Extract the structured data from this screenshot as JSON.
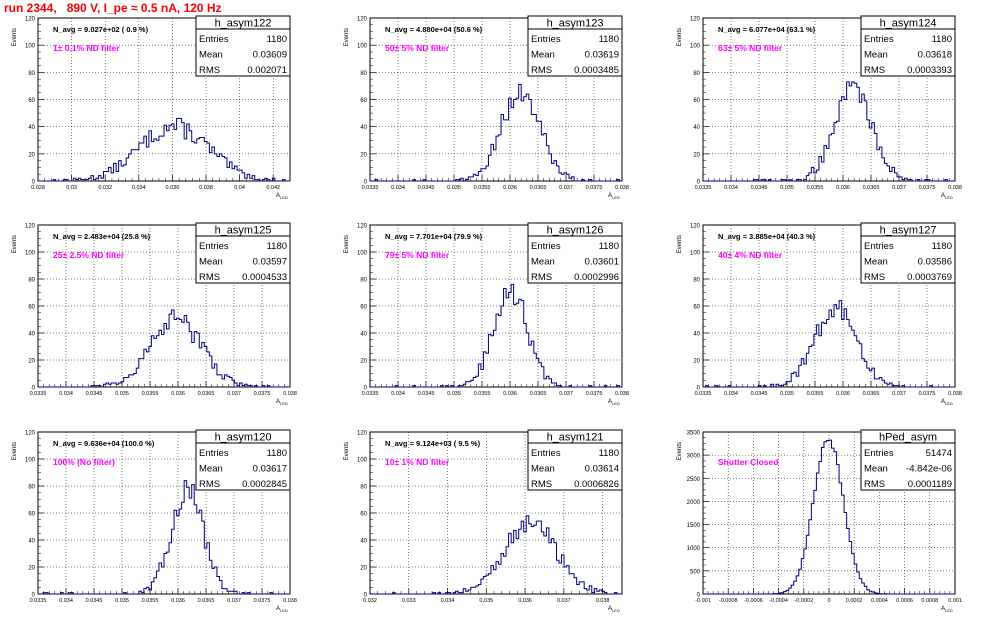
{
  "run_title": "run 2344,   890 V, I_pe ≈ 0.5 nA, 120 Hz",
  "colors": {
    "title": "#ff0000",
    "histogram": "#000080",
    "annotation": "#ff00ff",
    "grid": "#000000"
  },
  "chart_data": [
    {
      "type": "bar",
      "name": "h_asym122",
      "ylabel": "Events",
      "xlabel": "A_LED",
      "grid": true,
      "stats": {
        "entries_label": "Entries",
        "entries": "1180",
        "mean_label": "Mean",
        "mean": "0.03609",
        "rms_label": "RMS",
        "rms": "0.002071"
      },
      "n_avg": "N_avg = 9.027e+02 ( 0.9 %)",
      "annotation": "1± 0.1% ND filter",
      "xlim": [
        0.028,
        0.043
      ],
      "xticks": [
        "0.028",
        "0.03",
        "0.032",
        "0.034",
        "0.036",
        "0.038",
        "0.04",
        "0.042"
      ],
      "xtick_values": [
        0.028,
        0.03,
        0.032,
        0.034,
        0.036,
        0.038,
        0.04,
        0.042
      ],
      "ylim": [
        0,
        120
      ],
      "yticks": [
        "0",
        "20",
        "40",
        "60",
        "80",
        "100",
        "120"
      ],
      "dist": {
        "mean": 0.03609,
        "sigma": 0.002071,
        "peak": 40
      }
    },
    {
      "type": "bar",
      "name": "h_asym123",
      "ylabel": "Events",
      "xlabel": "A_LED",
      "grid": true,
      "stats": {
        "entries_label": "Entries",
        "entries": "1180",
        "mean_label": "Mean",
        "mean": "0.03619",
        "rms_label": "RMS",
        "rms": "0.0003485"
      },
      "n_avg": "N_avg = 4.880e+04 (50.6 %)",
      "annotation": "50± 5% ND filter",
      "xlim": [
        0.0335,
        0.038
      ],
      "xticks": [
        "0.0335",
        "0.034",
        "0.0345",
        "0.035",
        "0.0355",
        "0.036",
        "0.0365",
        "0.037",
        "0.0375",
        "0.038"
      ],
      "xtick_values": [
        0.0335,
        0.034,
        0.0345,
        0.035,
        0.0355,
        0.036,
        0.0365,
        0.037,
        0.0375,
        0.038
      ],
      "ylim": [
        0,
        120
      ],
      "yticks": [
        "0",
        "20",
        "40",
        "60",
        "80",
        "100",
        "120"
      ],
      "dist": {
        "mean": 0.03619,
        "sigma": 0.0003485,
        "peak": 65
      }
    },
    {
      "type": "bar",
      "name": "h_asym124",
      "ylabel": "Events",
      "xlabel": "A_LED",
      "grid": true,
      "stats": {
        "entries_label": "Entries",
        "entries": "1180",
        "mean_label": "Mean",
        "mean": "0.03618",
        "rms_label": "RMS",
        "rms": "0.0003393"
      },
      "n_avg": "N_avg = 6.077e+04 (63.1 %)",
      "annotation": "63± 5% ND filter",
      "xlim": [
        0.0335,
        0.038
      ],
      "xticks": [
        "0.0335",
        "0.034",
        "0.0345",
        "0.035",
        "0.0355",
        "0.036",
        "0.0365",
        "0.037",
        "0.0375",
        "0.038"
      ],
      "xtick_values": [
        0.0335,
        0.034,
        0.0345,
        0.035,
        0.0355,
        0.036,
        0.0365,
        0.037,
        0.0375,
        0.038
      ],
      "ylim": [
        0,
        120
      ],
      "yticks": [
        "0",
        "20",
        "40",
        "60",
        "80",
        "100",
        "120"
      ],
      "dist": {
        "mean": 0.03618,
        "sigma": 0.0003393,
        "peak": 68
      }
    },
    {
      "type": "bar",
      "name": "h_asym125",
      "ylabel": "Events",
      "xlabel": "A_LED",
      "grid": true,
      "stats": {
        "entries_label": "Entries",
        "entries": "1180",
        "mean_label": "Mean",
        "mean": "0.03597",
        "rms_label": "RMS",
        "rms": "0.0004533"
      },
      "n_avg": "N_avg = 2.483e+04 (25.8 %)",
      "annotation": "25± 2.5% ND filter",
      "xlim": [
        0.0335,
        0.038
      ],
      "xticks": [
        "0.0335",
        "0.034",
        "0.0345",
        "0.035",
        "0.0355",
        "0.036",
        "0.0365",
        "0.037",
        "0.0375",
        "0.038"
      ],
      "xtick_values": [
        0.0335,
        0.034,
        0.0345,
        0.035,
        0.0355,
        0.036,
        0.0365,
        0.037,
        0.0375,
        0.038
      ],
      "ylim": [
        0,
        120
      ],
      "yticks": [
        "0",
        "20",
        "40",
        "60",
        "80",
        "100",
        "120"
      ],
      "dist": {
        "mean": 0.03597,
        "sigma": 0.0004533,
        "peak": 50
      }
    },
    {
      "type": "bar",
      "name": "h_asym126",
      "ylabel": "Events",
      "xlabel": "A_LED",
      "grid": true,
      "stats": {
        "entries_label": "Entries",
        "entries": "1180",
        "mean_label": "Mean",
        "mean": "0.03601",
        "rms_label": "RMS",
        "rms": "0.0002996"
      },
      "n_avg": "N_avg = 7.701e+04 (79.9 %)",
      "annotation": "79± 5% ND filter",
      "xlim": [
        0.0335,
        0.038
      ],
      "xticks": [
        "0.0335",
        "0.034",
        "0.0345",
        "0.035",
        "0.0355",
        "0.036",
        "0.0365",
        "0.037",
        "0.0375",
        "0.038"
      ],
      "xtick_values": [
        0.0335,
        0.034,
        0.0345,
        0.035,
        0.0355,
        0.036,
        0.0365,
        0.037,
        0.0375,
        0.038
      ],
      "ylim": [
        0,
        120
      ],
      "yticks": [
        "0",
        "20",
        "40",
        "60",
        "80",
        "100",
        "120"
      ],
      "dist": {
        "mean": 0.03601,
        "sigma": 0.0002996,
        "peak": 72
      }
    },
    {
      "type": "bar",
      "name": "h_asym127",
      "ylabel": "Events",
      "xlabel": "A_LED",
      "grid": true,
      "stats": {
        "entries_label": "Entries",
        "entries": "1180",
        "mean_label": "Mean",
        "mean": "0.03586",
        "rms_label": "RMS",
        "rms": "0.0003769"
      },
      "n_avg": "N_avg = 3.885e+04 (40.3 %)",
      "annotation": "40± 4% ND filter",
      "xlim": [
        0.0335,
        0.038
      ],
      "xticks": [
        "0.0335",
        "0.034",
        "0.0345",
        "0.035",
        "0.0355",
        "0.036",
        "0.0365",
        "0.037",
        "0.0375",
        "0.038"
      ],
      "xtick_values": [
        0.0335,
        0.034,
        0.0345,
        0.035,
        0.0355,
        0.036,
        0.0365,
        0.037,
        0.0375,
        0.038
      ],
      "ylim": [
        0,
        120
      ],
      "yticks": [
        "0",
        "20",
        "40",
        "60",
        "80",
        "100",
        "120"
      ],
      "dist": {
        "mean": 0.03586,
        "sigma": 0.0003769,
        "peak": 58
      }
    },
    {
      "type": "bar",
      "name": "h_asym120",
      "ylabel": "Events",
      "xlabel": "A_LED",
      "grid": true,
      "stats": {
        "entries_label": "Entries",
        "entries": "1180",
        "mean_label": "Mean",
        "mean": "0.03617",
        "rms_label": "RMS",
        "rms": "0.0002845"
      },
      "n_avg": "N_avg = 9.636e+04 (100.0 %)",
      "annotation": "100% (No filter)",
      "xlim": [
        0.0335,
        0.038
      ],
      "xticks": [
        "0.0335",
        "0.034",
        "0.0345",
        "0.035",
        "0.0355",
        "0.036",
        "0.0365",
        "0.037",
        "0.0375",
        "0.038"
      ],
      "xtick_values": [
        0.0335,
        0.034,
        0.0345,
        0.035,
        0.0355,
        0.036,
        0.0365,
        0.037,
        0.0375,
        0.038
      ],
      "ylim": [
        0,
        120
      ],
      "yticks": [
        "0",
        "20",
        "40",
        "60",
        "80",
        "100",
        "120"
      ],
      "dist": {
        "mean": 0.03617,
        "sigma": 0.0002845,
        "peak": 78
      }
    },
    {
      "type": "bar",
      "name": "h_asym121",
      "ylabel": "Events",
      "xlabel": "A_LED",
      "grid": true,
      "stats": {
        "entries_label": "Entries",
        "entries": "1180",
        "mean_label": "Mean",
        "mean": "0.03614",
        "rms_label": "RMS",
        "rms": "0.0006826"
      },
      "n_avg": "N_avg = 9.124e+03 ( 9.5 %)",
      "annotation": "10± 1% ND filter",
      "xlim": [
        0.032,
        0.0385
      ],
      "xticks": [
        "0.032",
        "0.033",
        "0.034",
        "0.035",
        "0.036",
        "0.037",
        "0.038"
      ],
      "xtick_values": [
        0.032,
        0.033,
        0.034,
        0.035,
        0.036,
        0.037,
        0.038
      ],
      "ylim": [
        0,
        120
      ],
      "yticks": [
        "0",
        "20",
        "40",
        "60",
        "80",
        "100",
        "120"
      ],
      "dist": {
        "mean": 0.03614,
        "sigma": 0.0006826,
        "peak": 52
      }
    },
    {
      "type": "bar",
      "name": "hPed_asym",
      "ylabel": "Events",
      "xlabel": "A_LED",
      "grid": true,
      "stats": {
        "entries_label": "Entries",
        "entries": "51474",
        "mean_label": "Mean",
        "mean": "-4.842e-06",
        "rms_label": "RMS",
        "rms": "0.0001189"
      },
      "n_avg": "",
      "annotation": "Shutter Closed",
      "xlim": [
        -0.001,
        0.001
      ],
      "xticks": [
        "-0.001",
        "-0.0008",
        "-0.0006",
        "-0.0004",
        "-0.0002",
        "0",
        "0.0002",
        "0.0004",
        "0.0006",
        "0.0008",
        "0.001"
      ],
      "xtick_values": [
        -0.001,
        -0.0008,
        -0.0006,
        -0.0004,
        -0.0002,
        0,
        0.0002,
        0.0004,
        0.0006,
        0.0008,
        0.001
      ],
      "ylim": [
        0,
        3500
      ],
      "yticks": [
        "0",
        "500",
        "1000",
        "1500",
        "2000",
        "2500",
        "3000",
        "3500"
      ],
      "dist": {
        "mean": -4.842e-06,
        "sigma": 0.0001189,
        "peak": 3350
      }
    }
  ]
}
